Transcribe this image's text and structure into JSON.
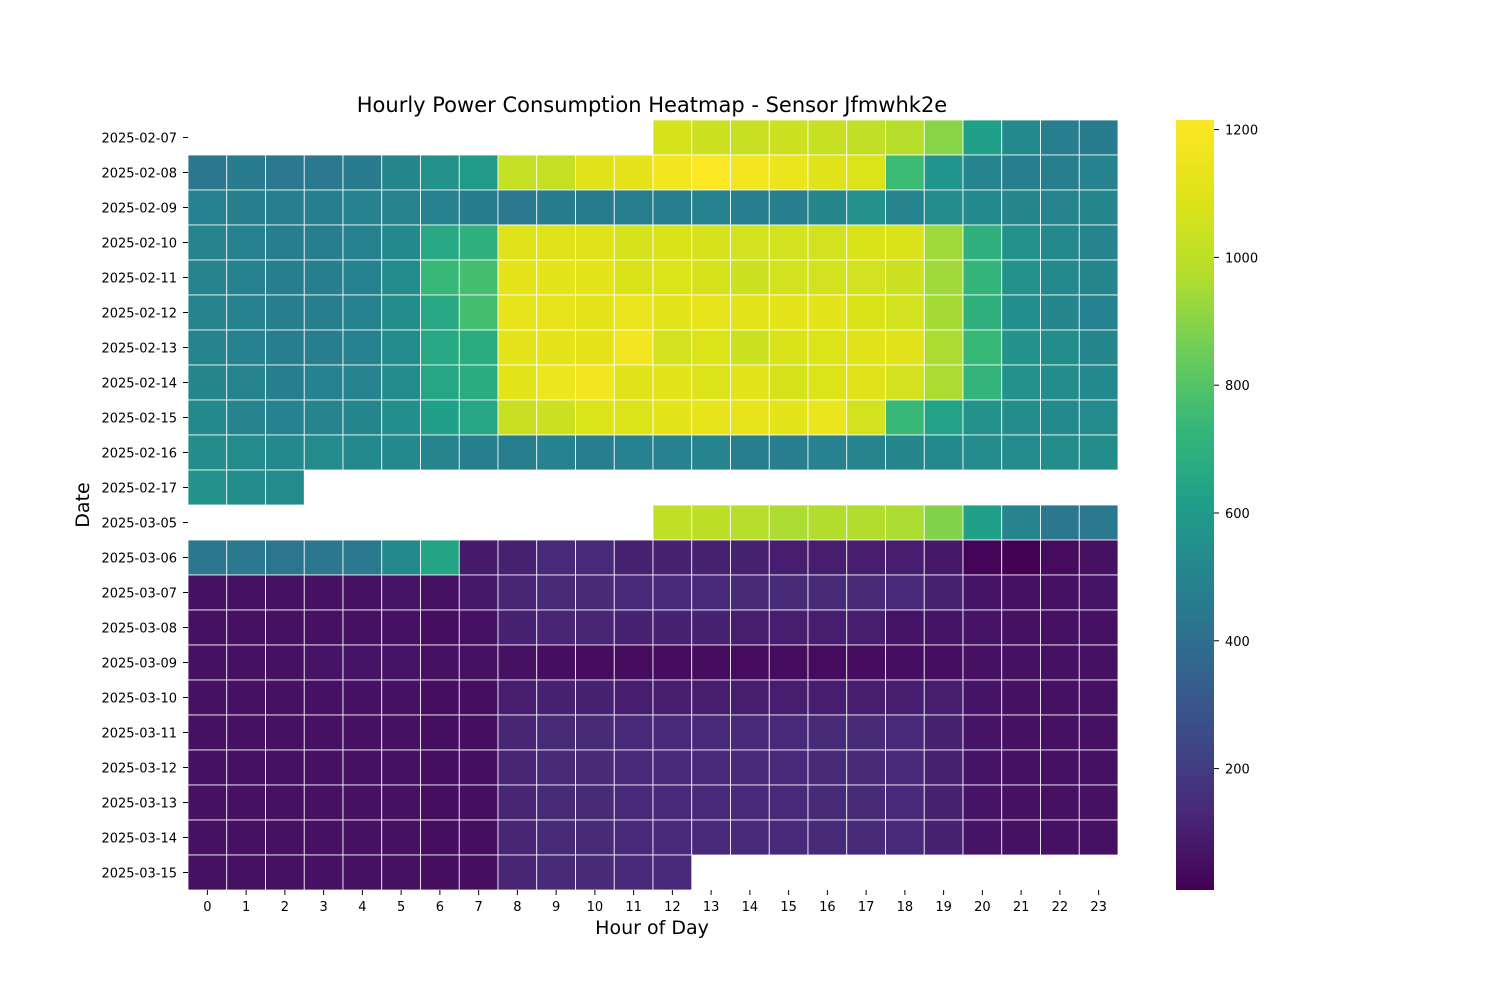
{
  "chart_data": {
    "type": "heatmap",
    "title": "Hourly Power Consumption Heatmap - Sensor Jfmwhk2e",
    "xlabel": "Hour of Day",
    "ylabel": "Date",
    "x": [
      "0",
      "1",
      "2",
      "3",
      "4",
      "5",
      "6",
      "7",
      "8",
      "9",
      "10",
      "11",
      "12",
      "13",
      "14",
      "15",
      "16",
      "17",
      "18",
      "19",
      "20",
      "21",
      "22",
      "23"
    ],
    "y": [
      "2025-02-07",
      "2025-02-08",
      "2025-02-09",
      "2025-02-10",
      "2025-02-11",
      "2025-02-12",
      "2025-02-13",
      "2025-02-14",
      "2025-02-15",
      "2025-02-16",
      "2025-02-17",
      "2025-03-05",
      "2025-03-06",
      "2025-03-07",
      "2025-03-08",
      "2025-03-09",
      "2025-03-10",
      "2025-03-11",
      "2025-03-12",
      "2025-03-13",
      "2025-03-14",
      "2025-03-15"
    ],
    "values": [
      [
        null,
        null,
        null,
        null,
        null,
        null,
        null,
        null,
        null,
        null,
        null,
        null,
        1070,
        1040,
        1030,
        1040,
        1030,
        1010,
        980,
        900,
        620,
        520,
        480,
        460
      ],
      [
        440,
        460,
        450,
        450,
        460,
        510,
        560,
        600,
        1020,
        1020,
        1100,
        1120,
        1170,
        1210,
        1170,
        1140,
        1100,
        1090,
        750,
        570,
        500,
        480,
        480,
        490
      ],
      [
        490,
        480,
        470,
        480,
        490,
        500,
        490,
        460,
        450,
        460,
        460,
        470,
        480,
        490,
        480,
        480,
        510,
        560,
        500,
        540,
        520,
        510,
        500,
        510
      ],
      [
        500,
        490,
        480,
        480,
        490,
        520,
        660,
        700,
        1100,
        1100,
        1100,
        1070,
        1080,
        1070,
        1060,
        1060,
        1060,
        1080,
        1080,
        940,
        700,
        560,
        520,
        500
      ],
      [
        500,
        490,
        480,
        480,
        490,
        530,
        740,
        770,
        1120,
        1110,
        1110,
        1080,
        1090,
        1070,
        1040,
        1060,
        1060,
        1060,
        1040,
        940,
        720,
        560,
        520,
        510
      ],
      [
        500,
        490,
        480,
        480,
        490,
        540,
        660,
        770,
        1130,
        1130,
        1120,
        1140,
        1110,
        1130,
        1110,
        1120,
        1110,
        1080,
        1060,
        950,
        700,
        550,
        510,
        490
      ],
      [
        500,
        490,
        480,
        480,
        490,
        530,
        660,
        680,
        1120,
        1120,
        1120,
        1170,
        1060,
        1090,
        1040,
        1080,
        1090,
        1100,
        1100,
        960,
        740,
        560,
        540,
        510
      ],
      [
        510,
        500,
        480,
        490,
        500,
        530,
        650,
        680,
        1110,
        1150,
        1170,
        1100,
        1110,
        1090,
        1110,
        1070,
        1090,
        1100,
        1060,
        960,
        720,
        560,
        540,
        520
      ],
      [
        520,
        500,
        490,
        500,
        510,
        550,
        620,
        650,
        1030,
        1040,
        1090,
        1090,
        1110,
        1130,
        1130,
        1110,
        1140,
        1060,
        740,
        630,
        560,
        540,
        520,
        530
      ],
      [
        540,
        530,
        520,
        530,
        520,
        520,
        500,
        480,
        480,
        490,
        480,
        490,
        490,
        500,
        480,
        470,
        490,
        500,
        510,
        520,
        530,
        530,
        540,
        540
      ],
      [
        560,
        540,
        530,
        null,
        null,
        null,
        null,
        null,
        null,
        null,
        null,
        null,
        null,
        null,
        null,
        null,
        null,
        null,
        null,
        null,
        null,
        null,
        null,
        null
      ],
      [
        null,
        null,
        null,
        null,
        null,
        null,
        null,
        null,
        null,
        null,
        null,
        null,
        1010,
        1000,
        980,
        960,
        970,
        970,
        960,
        890,
        620,
        500,
        440,
        450
      ],
      [
        440,
        450,
        430,
        440,
        450,
        520,
        640,
        90,
        110,
        130,
        130,
        110,
        110,
        110,
        110,
        100,
        100,
        100,
        100,
        80,
        20,
        10,
        40,
        60
      ],
      [
        60,
        60,
        60,
        60,
        60,
        70,
        60,
        80,
        120,
        140,
        140,
        130,
        130,
        130,
        140,
        140,
        140,
        140,
        130,
        110,
        70,
        60,
        60,
        70
      ],
      [
        60,
        60,
        60,
        60,
        60,
        60,
        50,
        60,
        110,
        120,
        120,
        110,
        110,
        110,
        100,
        100,
        100,
        100,
        70,
        70,
        70,
        60,
        60,
        60
      ],
      [
        60,
        60,
        60,
        70,
        70,
        70,
        60,
        60,
        60,
        50,
        40,
        40,
        40,
        40,
        40,
        40,
        40,
        40,
        50,
        50,
        60,
        60,
        60,
        60
      ],
      [
        60,
        60,
        60,
        60,
        60,
        60,
        50,
        50,
        100,
        110,
        110,
        100,
        100,
        100,
        100,
        100,
        100,
        100,
        100,
        100,
        70,
        60,
        60,
        60
      ],
      [
        60,
        60,
        60,
        60,
        60,
        60,
        50,
        50,
        120,
        140,
        140,
        130,
        130,
        130,
        130,
        130,
        140,
        140,
        130,
        110,
        70,
        60,
        60,
        60
      ],
      [
        60,
        60,
        60,
        60,
        60,
        60,
        50,
        50,
        120,
        140,
        140,
        130,
        130,
        130,
        130,
        130,
        140,
        140,
        130,
        110,
        70,
        60,
        60,
        60
      ],
      [
        60,
        60,
        60,
        60,
        60,
        60,
        50,
        50,
        120,
        140,
        140,
        130,
        130,
        130,
        130,
        130,
        140,
        140,
        130,
        110,
        70,
        60,
        60,
        60
      ],
      [
        60,
        60,
        60,
        60,
        60,
        60,
        50,
        50,
        120,
        140,
        140,
        130,
        130,
        130,
        130,
        130,
        140,
        140,
        130,
        110,
        70,
        60,
        60,
        60
      ],
      [
        60,
        60,
        60,
        60,
        60,
        60,
        50,
        50,
        120,
        140,
        140,
        130,
        130,
        null,
        null,
        null,
        null,
        null,
        null,
        null,
        null,
        null,
        null,
        null
      ]
    ],
    "colorbar": {
      "min": 10,
      "max": 1215,
      "ticks": [
        200,
        400,
        600,
        800,
        1000,
        1200
      ],
      "tick_labels": [
        "200",
        "400",
        "600",
        "800",
        "1000",
        "1200"
      ]
    },
    "colormap": "viridis",
    "grid": false,
    "legend": "colorbar-right"
  }
}
